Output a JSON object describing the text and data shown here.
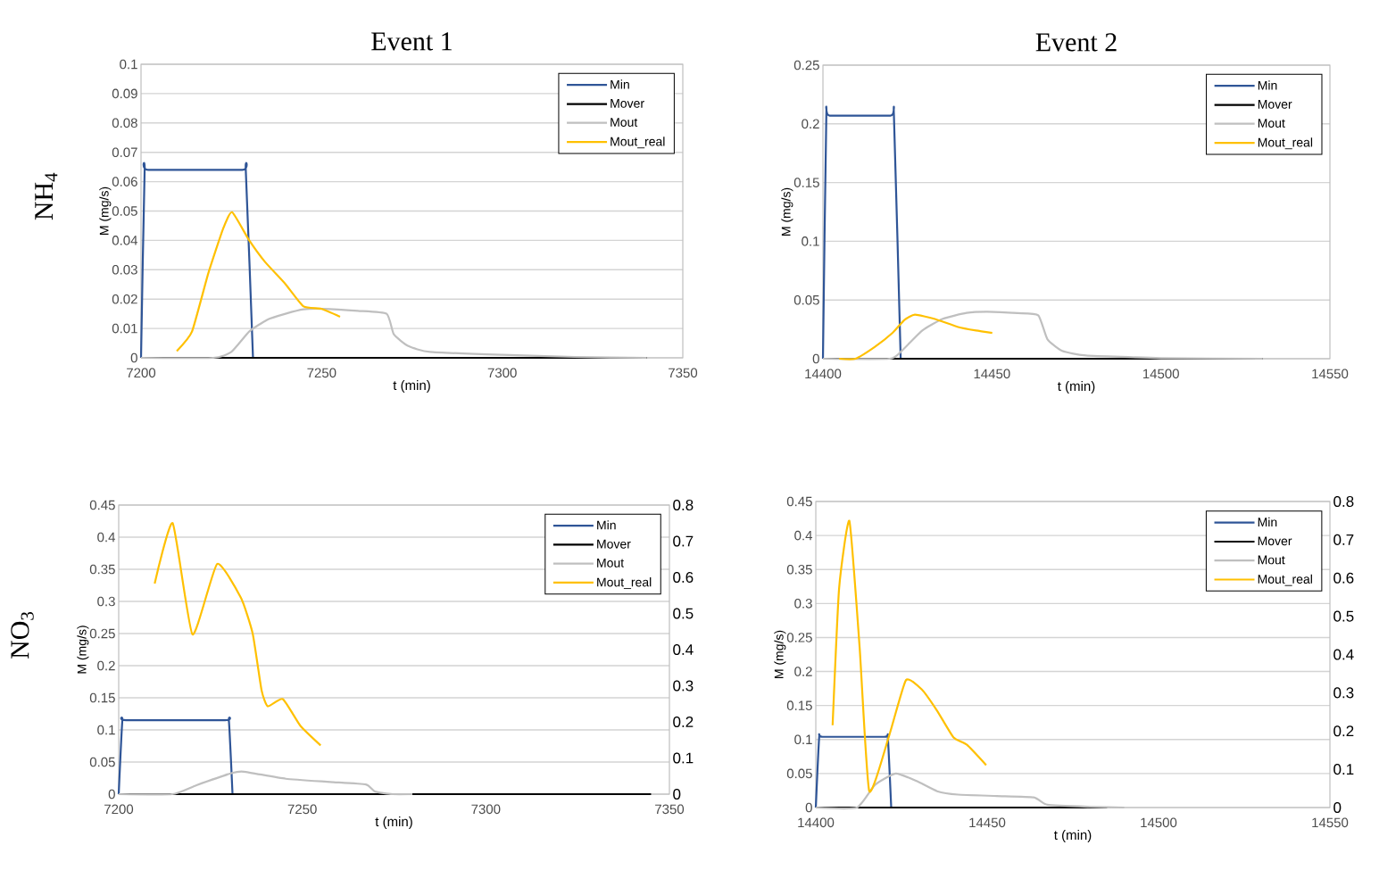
{
  "chart_data": [
    {
      "type": "line",
      "title": "Event 1",
      "xlabel": "t (min)",
      "ylabel": "M (mg/s)",
      "annotations": [
        "NH$_{4}$"
      ],
      "xlim": [
        7200,
        7350
      ],
      "xticks": [
        7200,
        7250,
        7300,
        7350
      ],
      "ylim": [
        0,
        0.1
      ],
      "yticks": [
        0,
        0.01,
        0.02,
        0.03,
        0.04,
        0.05,
        0.06,
        0.07,
        0.08,
        0.09,
        0.1
      ],
      "grid": "y",
      "legend": "top right",
      "series": [
        {
          "name": "Min",
          "color": "#2f5597",
          "x": [
            7200,
            7201,
            7202,
            7228,
            7229,
            7231
          ],
          "values": [
            0,
            0.064,
            0.064,
            0.064,
            0.064,
            0
          ]
        },
        {
          "name": "Mover",
          "color": "#000000",
          "x": [
            7200,
            7340
          ],
          "values": [
            0,
            0
          ]
        },
        {
          "name": "Mout",
          "color": "#bfbfbf",
          "x": [
            7200,
            7220,
            7225,
            7230,
            7235,
            7240,
            7245,
            7250,
            7260,
            7268,
            7270,
            7274,
            7280,
            7300,
            7320,
            7340
          ],
          "values": [
            0,
            0,
            0.002,
            0.009,
            0.013,
            0.015,
            0.0165,
            0.0167,
            0.016,
            0.015,
            0.008,
            0.004,
            0.002,
            0.001,
            0.0003,
            0
          ]
        },
        {
          "name": "Mout_real",
          "color": "#ffc000",
          "x": [
            7209.9,
            7214.1,
            7218.6,
            7222.7,
            7225.2,
            7229.8,
            7234.3,
            7240,
            7245,
            7249.9,
            7255.1
          ],
          "values": [
            0.0023,
            0.0089,
            0.0287,
            0.0439,
            0.0496,
            0.0403,
            0.0327,
            0.0251,
            0.0175,
            0.0167,
            0.014
          ]
        }
      ]
    },
    {
      "type": "line",
      "title": "Event 2",
      "xlabel": "t (min)",
      "ylabel": "M (mg/s)",
      "xlim": [
        14400,
        14550
      ],
      "xticks": [
        14400,
        14450,
        14500,
        14550
      ],
      "ylim": [
        0,
        0.25
      ],
      "yticks": [
        0,
        0.05,
        0.1,
        0.15,
        0.2,
        0.25
      ],
      "grid": "y",
      "legend": "top right",
      "series": [
        {
          "name": "Min",
          "color": "#2f5597",
          "x": [
            14400,
            14401,
            14402,
            14420,
            14421,
            14423
          ],
          "values": [
            0,
            0.207,
            0.207,
            0.207,
            0.207,
            0
          ]
        },
        {
          "name": "Mover",
          "color": "#000000",
          "x": [
            14400,
            14530
          ],
          "values": [
            0,
            0
          ]
        },
        {
          "name": "Mout",
          "color": "#bfbfbf",
          "x": [
            14400,
            14419.7,
            14423.2,
            14429.4,
            14435.5,
            14442.5,
            14448.7,
            14457.6,
            14463.7,
            14466.4,
            14470.8,
            14477.8,
            14500,
            14530
          ],
          "values": [
            0,
            0,
            0.0064,
            0.024,
            0.034,
            0.039,
            0.04,
            0.0388,
            0.037,
            0.0167,
            0.0066,
            0.0028,
            0.0005,
            0
          ]
        },
        {
          "name": "Mout_real",
          "color": "#ffc000",
          "x": [
            14404.8,
            14409.6,
            14415.3,
            14420.6,
            14424.1,
            14427.2,
            14432.9,
            14440,
            14445.3,
            14450.1
          ],
          "values": [
            0,
            0,
            0.01,
            0.022,
            0.033,
            0.0375,
            0.034,
            0.027,
            0.024,
            0.022
          ]
        }
      ]
    },
    {
      "type": "line",
      "xlabel": "t (min)",
      "ylabel": "M (mg/s)",
      "annotations": [
        "NO$_{3}$"
      ],
      "xlim": [
        7200,
        7350
      ],
      "xticks": [
        7200,
        7250,
        7300,
        7350
      ],
      "ylim": [
        0,
        0.45
      ],
      "yticks": [
        0,
        0.05,
        0.1,
        0.15,
        0.2,
        0.25,
        0.3,
        0.35,
        0.4,
        0.45
      ],
      "y2lim": [
        0,
        0.8
      ],
      "y2ticks": [
        0,
        0.1,
        0.2,
        0.3,
        0.4,
        0.5,
        0.6,
        0.7,
        0.8
      ],
      "grid": "y",
      "legend": "top right",
      "series": [
        {
          "name": "Min",
          "color": "#2f5597",
          "x": [
            7200,
            7201,
            7202,
            7229,
            7230,
            7231
          ],
          "values": [
            0,
            0.115,
            0.115,
            0.115,
            0.115,
            0
          ]
        },
        {
          "name": "Mover",
          "color": "#000000",
          "x": [
            7200,
            7345
          ],
          "values": [
            0,
            0
          ]
        },
        {
          "name": "Mout",
          "color": "#bfbfbf",
          "x": [
            7200,
            7214.6,
            7221.2,
            7230.9,
            7234.1,
            7245.5,
            7257.6,
            7267.3,
            7269.8,
            7274.6,
            7280
          ],
          "values": [
            0,
            0,
            0.014,
            0.033,
            0.035,
            0.024,
            0.019,
            0.015,
            0.004,
            0,
            0
          ]
        },
        {
          "name": "Mout_real",
          "color": "#ffc000",
          "axis": "y2",
          "x": [
            7209.8,
            7214.7,
            7220.1,
            7226.8,
            7233.3,
            7236.5,
            7238.9,
            7240.6,
            7244.7,
            7249.5,
            7255
          ],
          "values": [
            0.583,
            0.75,
            0.442,
            0.637,
            0.543,
            0.444,
            0.288,
            0.243,
            0.263,
            0.189,
            0.135
          ]
        }
      ]
    },
    {
      "type": "line",
      "xlabel": "t (min)",
      "ylabel": "M (mg/s)",
      "xlim": [
        14400,
        14550
      ],
      "xticks": [
        14400,
        14450,
        14500,
        14550
      ],
      "ylim": [
        0,
        0.45
      ],
      "yticks": [
        0,
        0.05,
        0.1,
        0.15,
        0.2,
        0.25,
        0.3,
        0.35,
        0.4,
        0.45
      ],
      "y2lim": [
        0,
        0.8
      ],
      "y2ticks": [
        0,
        0.1,
        0.2,
        0.3,
        0.4,
        0.5,
        0.6,
        0.7,
        0.8
      ],
      "grid": "y",
      "legend": "top right",
      "series": [
        {
          "name": "Min",
          "color": "#2f5597",
          "x": [
            14400,
            14401,
            14402,
            14420,
            14421,
            14422
          ],
          "values": [
            0,
            0.104,
            0.104,
            0.104,
            0.104,
            0
          ]
        },
        {
          "name": "Mover",
          "color": "#000000",
          "x": [
            14400,
            14485
          ],
          "values": [
            0,
            0
          ]
        },
        {
          "name": "Mout",
          "color": "#bfbfbf",
          "x": [
            14400,
            14412,
            14417.2,
            14423.3,
            14429.4,
            14435.4,
            14441.5,
            14452.8,
            14463.6,
            14467.6,
            14480,
            14490
          ],
          "values": [
            0,
            0,
            0.033,
            0.05,
            0.039,
            0.024,
            0.019,
            0.017,
            0.015,
            0.004,
            0.001,
            0
          ]
        },
        {
          "name": "Mout_real",
          "color": "#ffc000",
          "axis": "y2",
          "x": [
            14404.9,
            14406.8,
            14409.8,
            14412.8,
            14415.6,
            14421.5,
            14426.3,
            14431,
            14435.4,
            14440.2,
            14444.1,
            14449.7
          ],
          "values": [
            0.215,
            0.573,
            0.749,
            0.417,
            0.043,
            0.191,
            0.333,
            0.308,
            0.253,
            0.183,
            0.164,
            0.111
          ]
        }
      ]
    }
  ]
}
